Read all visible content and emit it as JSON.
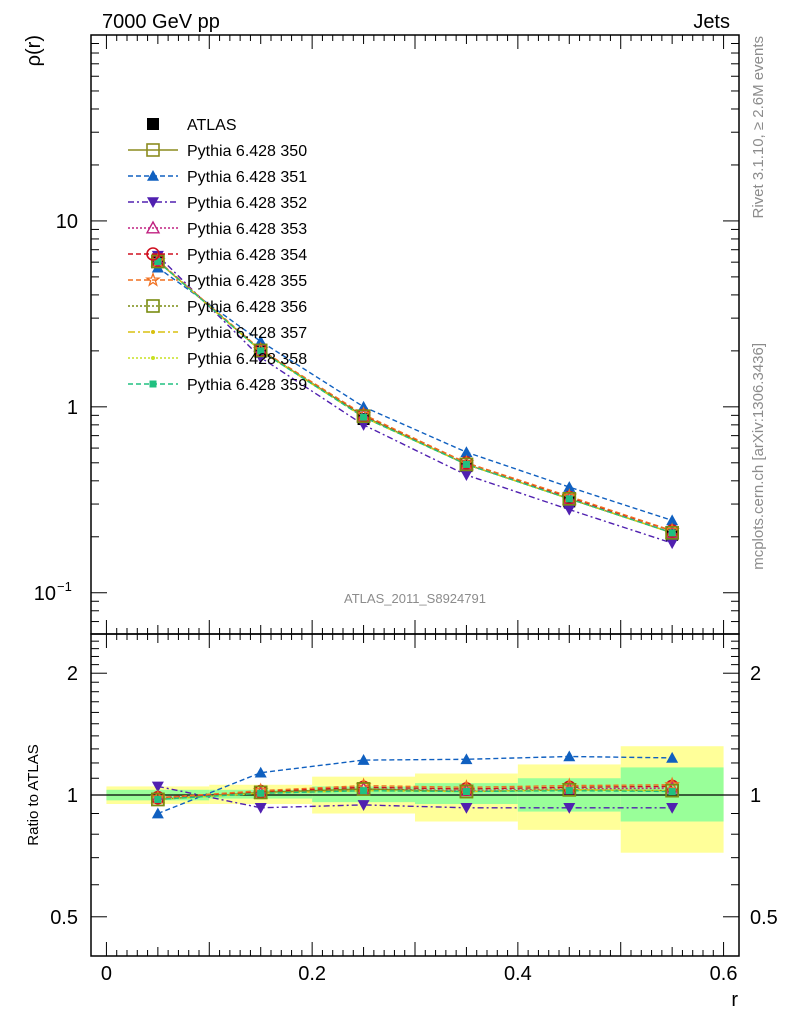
{
  "header": {
    "left": "7000 GeV pp",
    "right": "Jets"
  },
  "side_labels": {
    "rivet": "Rivet 3.1.10, ≥ 2.6M events",
    "mcplots": "mcplots.cern.ch [arXiv:1306.3436]"
  },
  "watermark": "ATLAS_2011_S8924791",
  "colors": {
    "band_stat": "#99ff99",
    "band_total": "#ffff99"
  },
  "chart_data": [
    {
      "type": "line",
      "panel": "main",
      "xlabel": "",
      "ylabel": "ρ(r)",
      "yscale": "log",
      "xlim": [
        -0.015,
        0.615
      ],
      "ylim": [
        0.06,
        100
      ],
      "y_ticks": [
        {
          "value": 0.1,
          "label": "10",
          "sup": "−1"
        },
        {
          "value": 1,
          "label": "1",
          "sup": ""
        },
        {
          "value": 10,
          "label": "10",
          "sup": ""
        }
      ],
      "x": [
        0.05,
        0.15,
        0.25,
        0.35,
        0.45,
        0.55
      ],
      "legend_position": "top-left",
      "series": [
        {
          "name": "ATLAS",
          "color": "#000000",
          "marker": "square-filled",
          "dash": "none",
          "values": [
            6.2,
            1.98,
            0.86,
            0.48,
            0.31,
            0.205
          ],
          "errors": [
            0.2,
            0.06,
            0.03,
            0.02,
            0.015,
            0.012
          ]
        },
        {
          "name": "Pythia 6.428 350",
          "color": "#8c8c1f",
          "marker": "square-open",
          "dash": "solid",
          "values": [
            6.05,
            2.01,
            0.89,
            0.49,
            0.32,
            0.21
          ]
        },
        {
          "name": "Pythia 6.428 351",
          "color": "#1060c0",
          "marker": "triangle-up-filled",
          "dash": "5,3",
          "values": [
            5.6,
            2.25,
            1.0,
            0.57,
            0.37,
            0.245
          ]
        },
        {
          "name": "Pythia 6.428 352",
          "color": "#5020b0",
          "marker": "triangle-down-filled",
          "dash": "6,3,2,3",
          "values": [
            6.5,
            1.84,
            0.8,
            0.43,
            0.28,
            0.185
          ]
        },
        {
          "name": "Pythia 6.428 353",
          "color": "#c02080",
          "marker": "triangle-up-open",
          "dash": "2,2",
          "values": [
            6.1,
            2.0,
            0.89,
            0.49,
            0.32,
            0.21
          ]
        },
        {
          "name": "Pythia 6.428 354",
          "color": "#d01020",
          "marker": "circle-open",
          "dash": "5,3",
          "values": [
            6.1,
            2.02,
            0.9,
            0.5,
            0.325,
            0.215
          ]
        },
        {
          "name": "Pythia 6.428 355",
          "color": "#f07020",
          "marker": "star-open",
          "dash": "5,3",
          "values": [
            6.1,
            2.03,
            0.91,
            0.5,
            0.33,
            0.216
          ]
        },
        {
          "name": "Pythia 6.428 356",
          "color": "#7a8c10",
          "marker": "square-open",
          "dash": "2,2",
          "values": [
            6.05,
            2.01,
            0.89,
            0.49,
            0.32,
            0.21
          ]
        },
        {
          "name": "Pythia 6.428 357",
          "color": "#d8c010",
          "marker": "dot",
          "dash": "7,3,2,3",
          "values": [
            6.05,
            2.0,
            0.88,
            0.49,
            0.32,
            0.21
          ]
        },
        {
          "name": "Pythia 6.428 358",
          "color": "#c8e020",
          "marker": "dot",
          "dash": "2,2",
          "values": [
            6.05,
            2.0,
            0.88,
            0.49,
            0.32,
            0.21
          ]
        },
        {
          "name": "Pythia 6.428 359",
          "color": "#20c080",
          "marker": "square-filled-small",
          "dash": "5,3",
          "values": [
            6.05,
            2.0,
            0.88,
            0.49,
            0.32,
            0.21
          ]
        }
      ]
    },
    {
      "type": "line",
      "panel": "ratio",
      "xlabel": "r",
      "ylabel": "Ratio to ATLAS",
      "yscale": "log",
      "xlim": [
        -0.015,
        0.615
      ],
      "ylim": [
        0.4,
        2.5
      ],
      "x_ticks": [
        {
          "value": 0,
          "label": "0"
        },
        {
          "value": 0.2,
          "label": "0.2"
        },
        {
          "value": 0.4,
          "label": "0.4"
        },
        {
          "value": 0.6,
          "label": "0.6"
        }
      ],
      "y_ticks": [
        {
          "value": 0.5,
          "label": "0.5"
        },
        {
          "value": 1,
          "label": "1"
        },
        {
          "value": 2,
          "label": "2"
        }
      ],
      "bands": [
        {
          "x0": 0.0,
          "x1": 0.1,
          "stat": [
            0.97,
            1.03
          ],
          "total": [
            0.95,
            1.05
          ]
        },
        {
          "x0": 0.1,
          "x1": 0.2,
          "stat": [
            0.98,
            1.03
          ],
          "total": [
            0.95,
            1.06
          ]
        },
        {
          "x0": 0.2,
          "x1": 0.3,
          "stat": [
            0.96,
            1.05
          ],
          "total": [
            0.9,
            1.11
          ]
        },
        {
          "x0": 0.3,
          "x1": 0.4,
          "stat": [
            0.95,
            1.07
          ],
          "total": [
            0.86,
            1.13
          ]
        },
        {
          "x0": 0.4,
          "x1": 0.5,
          "stat": [
            0.91,
            1.1
          ],
          "total": [
            0.82,
            1.19
          ]
        },
        {
          "x0": 0.5,
          "x1": 0.6,
          "stat": [
            0.86,
            1.17
          ],
          "total": [
            0.72,
            1.32
          ]
        }
      ],
      "x": [
        0.05,
        0.15,
        0.25,
        0.35,
        0.45,
        0.55
      ],
      "series": [
        {
          "name": "Pythia 6.428 350",
          "values": [
            0.975,
            1.015,
            1.035,
            1.02,
            1.03,
            1.025
          ]
        },
        {
          "name": "Pythia 6.428 351",
          "values": [
            0.9,
            1.135,
            1.22,
            1.225,
            1.245,
            1.235
          ]
        },
        {
          "name": "Pythia 6.428 352",
          "values": [
            1.05,
            0.93,
            0.945,
            0.93,
            0.93,
            0.93
          ]
        },
        {
          "name": "Pythia 6.428 353",
          "values": [
            0.985,
            1.01,
            1.035,
            1.025,
            1.035,
            1.04
          ]
        },
        {
          "name": "Pythia 6.428 354",
          "values": [
            0.985,
            1.02,
            1.045,
            1.035,
            1.045,
            1.05
          ]
        },
        {
          "name": "Pythia 6.428 355",
          "values": [
            0.985,
            1.025,
            1.055,
            1.045,
            1.055,
            1.06
          ]
        },
        {
          "name": "Pythia 6.428 356",
          "values": [
            0.975,
            1.015,
            1.035,
            1.02,
            1.03,
            1.025
          ]
        },
        {
          "name": "Pythia 6.428 357",
          "values": [
            0.975,
            1.01,
            1.025,
            1.02,
            1.03,
            1.025
          ]
        },
        {
          "name": "Pythia 6.428 358",
          "values": [
            0.975,
            1.01,
            1.025,
            1.02,
            1.03,
            1.025
          ]
        },
        {
          "name": "Pythia 6.428 359",
          "values": [
            0.975,
            1.01,
            1.025,
            1.02,
            1.025,
            1.02
          ]
        }
      ]
    }
  ]
}
